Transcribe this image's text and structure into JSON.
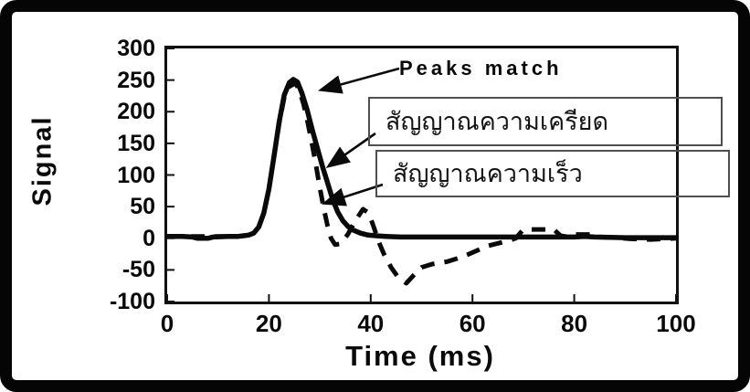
{
  "frame": {
    "background": "#ffffff",
    "border_color": "#050505"
  },
  "colors": {
    "curve": "#0a0a0a",
    "axis": "#111111",
    "callout_border": "#4f4f4f",
    "text": "#0a0a0a"
  },
  "annotations": {
    "peaks_match": {
      "text": "Peaks match"
    },
    "strain_box": {
      "text": "สัญญาณความเครียด"
    },
    "velocity_box": {
      "text": "สัญญาณความเร็ว"
    }
  },
  "chart_data": {
    "type": "line",
    "title": "",
    "xlabel": "Time (ms)",
    "ylabel": "Signal",
    "xlim": [
      0,
      100
    ],
    "ylim": [
      -100,
      300
    ],
    "x_ticks": [
      0,
      20,
      40,
      60,
      80,
      100
    ],
    "y_ticks": [
      300,
      250,
      200,
      150,
      100,
      50,
      0,
      -50,
      -100
    ],
    "grid": false,
    "legend_position": "callout boxes with arrows",
    "series": [
      {
        "name": "สัญญาณความเครียด",
        "meaning": "strain signal",
        "style": "solid",
        "color": "#0a0a0a",
        "points": [
          [
            0,
            3
          ],
          [
            3,
            3
          ],
          [
            5,
            2
          ],
          [
            6,
            0
          ],
          [
            8,
            0
          ],
          [
            9,
            2
          ],
          [
            12,
            3
          ],
          [
            14,
            3
          ],
          [
            15,
            4
          ],
          [
            16,
            5
          ],
          [
            17,
            8
          ],
          [
            18,
            18
          ],
          [
            19,
            40
          ],
          [
            20,
            78
          ],
          [
            21,
            130
          ],
          [
            22,
            183
          ],
          [
            23,
            226
          ],
          [
            24,
            246
          ],
          [
            24.8,
            251
          ],
          [
            25.6,
            247
          ],
          [
            26.5,
            229
          ],
          [
            27.5,
            203
          ],
          [
            28.5,
            172
          ],
          [
            29.5,
            143
          ],
          [
            30.5,
            114
          ],
          [
            31.5,
            88
          ],
          [
            32.5,
            62
          ],
          [
            33.5,
            42
          ],
          [
            34.5,
            28
          ],
          [
            35.5,
            19
          ],
          [
            36.5,
            13
          ],
          [
            38,
            8
          ],
          [
            39.5,
            5
          ],
          [
            41,
            4
          ],
          [
            43,
            3
          ],
          [
            46,
            2
          ],
          [
            55,
            2
          ],
          [
            65,
            2
          ],
          [
            75,
            2
          ],
          [
            80,
            2
          ],
          [
            82,
            3
          ],
          [
            84,
            2
          ],
          [
            90,
            1
          ],
          [
            95,
            1
          ],
          [
            100,
            1
          ]
        ]
      },
      {
        "name": "สัญญาณความเร็ว",
        "meaning": "velocity signal",
        "style": "dashed",
        "color": "#0a0a0a",
        "points": [
          [
            0,
            3
          ],
          [
            14,
            3
          ],
          [
            16,
            5
          ],
          [
            17,
            8
          ],
          [
            18,
            18
          ],
          [
            19,
            40
          ],
          [
            20,
            78
          ],
          [
            21,
            130
          ],
          [
            22,
            181
          ],
          [
            23,
            222
          ],
          [
            24,
            240
          ],
          [
            25.3,
            245
          ],
          [
            26,
            233
          ],
          [
            26.8,
            212
          ],
          [
            27.6,
            184
          ],
          [
            28.4,
            152
          ],
          [
            29.2,
            118
          ],
          [
            30,
            80
          ],
          [
            30.8,
            46
          ],
          [
            31.5,
            20
          ],
          [
            32.2,
            0
          ],
          [
            33,
            -10
          ],
          [
            34,
            -9
          ],
          [
            35.5,
            6
          ],
          [
            37,
            28
          ],
          [
            38.5,
            46
          ],
          [
            39.6,
            40
          ],
          [
            40.6,
            18
          ],
          [
            41.6,
            -6
          ],
          [
            42.6,
            -25
          ],
          [
            44,
            -46
          ],
          [
            45.5,
            -63
          ],
          [
            47,
            -71
          ],
          [
            48.5,
            -58
          ],
          [
            50,
            -46
          ],
          [
            52,
            -41
          ],
          [
            55,
            -37
          ],
          [
            57,
            -32
          ],
          [
            59,
            -26
          ],
          [
            61,
            -19
          ],
          [
            63,
            -12
          ],
          [
            65,
            -8
          ],
          [
            67,
            -4
          ],
          [
            68.5,
            0
          ],
          [
            69.8,
            12
          ],
          [
            71,
            14
          ],
          [
            76,
            14
          ],
          [
            77.3,
            4
          ],
          [
            79,
            2
          ],
          [
            80,
            6
          ],
          [
            83.5,
            6
          ],
          [
            85,
            2
          ],
          [
            88,
            1
          ],
          [
            91,
            -1
          ],
          [
            95,
            -2
          ],
          [
            98,
            -1
          ],
          [
            100,
            0
          ]
        ]
      }
    ],
    "annotations": [
      {
        "text": "Peaks match",
        "arrow_points_to": "shared peak of both curves at t≈25 ms, signal≈250"
      },
      {
        "text": "สัญญาณความเครียด",
        "arrow_points_to": "solid curve falling flank"
      },
      {
        "text": "สัญญาณความเร็ว",
        "arrow_points_to": "dashed curve falling flank"
      }
    ]
  }
}
